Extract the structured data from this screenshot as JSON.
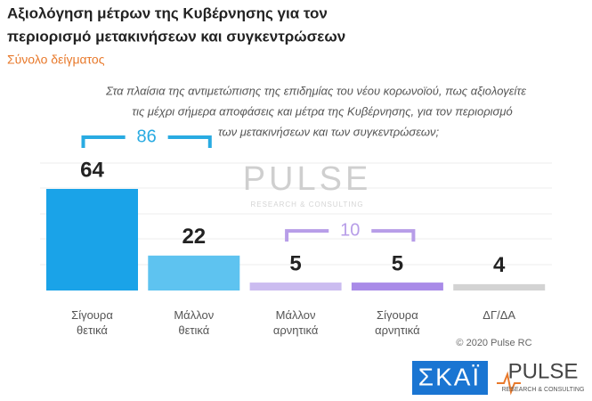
{
  "chart_data": {
    "type": "bar",
    "title": [
      "Αξιολόγηση μέτρων της Κυβέρνησης για τον",
      "περιορισμό μετακινήσεων και συγκεντρώσεων"
    ],
    "subtitle": "Σύνολο δείγματος",
    "question": [
      "Στα πλαίσια της αντιμετώπισης της επιδημίας του νέου κορωνοϊού, πως αξιολογείτε",
      "τις μέχρι σήμερα αποφάσεις και μέτρα της Κυβέρνησης, για τον περιορισμό",
      "των μετακινήσεων και των συγκεντρώσεων;"
    ],
    "categories": [
      "Σίγουρα θετικά",
      "Μάλλον θετικά",
      "Μάλλον αρνητικά",
      "Σίγουρα αρνητικά",
      "ΔΓ/ΔΑ"
    ],
    "values": [
      64,
      22,
      5,
      5,
      4
    ],
    "colors": [
      "#1aa3e8",
      "#5ec3f0",
      "#cbbcf0",
      "#a98be8",
      "#d3d3d3"
    ],
    "groups": [
      {
        "value": 86,
        "categories": [
          "Σίγουρα θετικά",
          "Μάλλον θετικά"
        ],
        "color": "#29abe2"
      },
      {
        "value": 10,
        "categories": [
          "Μάλλον αρνητικά",
          "Σίγουρα αρνητικά"
        ],
        "color": "#b79de8"
      }
    ],
    "watermark": {
      "name": "PULSE",
      "tagline": "RESEARCH & CONSULTING"
    },
    "copyright": "© 2020 Pulse RC",
    "logos": {
      "skai": "ΣΚΑΪ",
      "pulse": "PULSE",
      "pulse_tagline": "RESEARCH & CONSULTING"
    }
  }
}
